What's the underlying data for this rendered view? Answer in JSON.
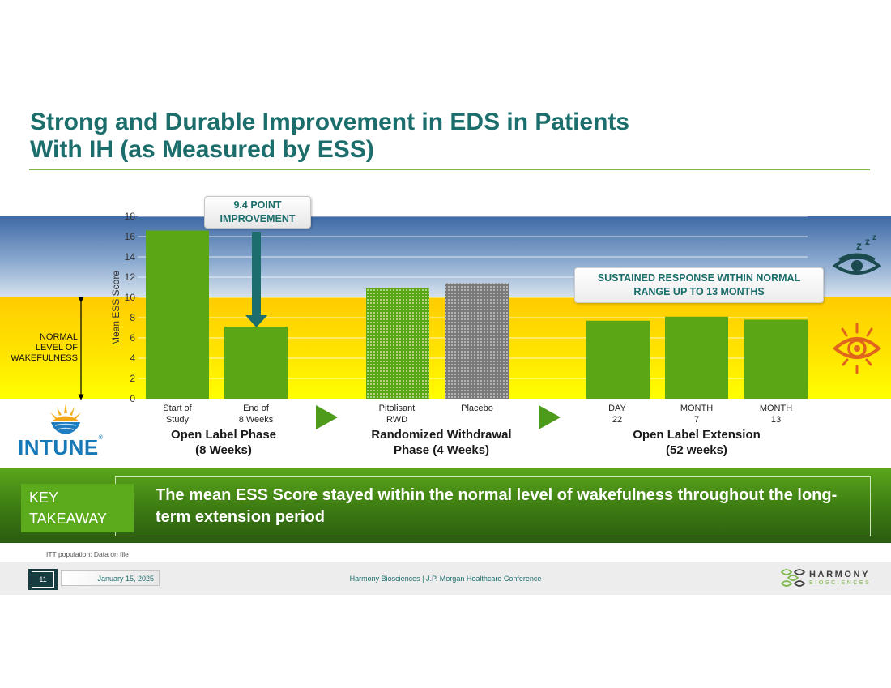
{
  "title": {
    "line1": "Strong and Durable Improvement in EDS in Patients",
    "line2": "With IH (as Measured by ESS)"
  },
  "chart_data": {
    "type": "bar",
    "ylabel": "Mean ESS Score",
    "ylim": [
      0,
      18
    ],
    "yticks": [
      "0",
      "2",
      "4",
      "6",
      "8",
      "10",
      "12",
      "14",
      "16",
      "18"
    ],
    "normal_range_max": 10,
    "categories": [
      "Start of Study",
      "End of 8 Weeks",
      "Pitolisant RWD",
      "Placebo",
      "DAY 22",
      "MONTH 7",
      "MONTH 13"
    ],
    "values": [
      16.6,
      7.1,
      10.9,
      11.4,
      7.7,
      8.1,
      7.8
    ],
    "bar_styles": [
      "solid",
      "solid",
      "dotted-green",
      "dotted-gray",
      "solid",
      "solid",
      "solid"
    ],
    "groups": [
      {
        "label": "Open Label Phase (8 Weeks)",
        "categories": [
          "Start of Study",
          "End of 8 Weeks"
        ]
      },
      {
        "label": "Randomized Withdrawal Phase (4 Weeks)",
        "categories": [
          "Pitolisant RWD",
          "Placebo"
        ]
      },
      {
        "label": "Open Label Extension (52 weeks)",
        "categories": [
          "DAY 22",
          "MONTH 7",
          "MONTH 13"
        ]
      }
    ],
    "annotations": [
      "9.4 POINT IMPROVEMENT",
      "SUSTAINED RESPONSE WITHIN NORMAL RANGE UP TO 13 MONTHS"
    ]
  },
  "callouts": {
    "improvement": {
      "line1": "9.4 POINT",
      "line2": "IMPROVEMENT"
    },
    "sustained": {
      "line1": "SUSTAINED RESPONSE WITHIN NORMAL",
      "line2": "RANGE UP TO 13 MONTHS"
    }
  },
  "normal_label": {
    "line1": "NORMAL",
    "line2": "LEVEL OF",
    "line3": "WAKEFULNESS"
  },
  "categories": [
    {
      "line1": "Start of",
      "line2": "Study"
    },
    {
      "line1": "End of",
      "line2": "8 Weeks"
    },
    {
      "line1": "Pitolisant",
      "line2": "RWD"
    },
    {
      "line1": "Placebo",
      "line2": ""
    },
    {
      "line1": "DAY",
      "line2": "22"
    },
    {
      "line1": "MONTH",
      "line2": "7"
    },
    {
      "line1": "MONTH",
      "line2": "13"
    }
  ],
  "phases": [
    {
      "line1": "Open Label Phase",
      "line2": "(8 Weeks)"
    },
    {
      "line1": "Randomized Withdrawal",
      "line2": "Phase (4 Weeks)"
    },
    {
      "line1": "Open Label Extension",
      "line2": "(52 weeks)"
    }
  ],
  "brand": {
    "intune": "INTUNE",
    "registered": "®",
    "company": "HARMONY",
    "company_sub": "BIOSCIENCES"
  },
  "key_takeaway": {
    "label_line1": "KEY",
    "label_line2": "TAKEAWAY",
    "text": "The mean ESS Score stayed within the normal level of wakefulness throughout the long-term extension period"
  },
  "footnote": "ITT population: Data on file",
  "footer": {
    "page": "11",
    "date": "January 15, 2025",
    "center": "Harmony Biosciences  |  J.P. Morgan Healthcare Conference"
  },
  "icons": [
    "sleeping-eye-icon",
    "awake-eye-icon",
    "intune-logo-icon",
    "harmony-logo-icon",
    "play-arrow-icon"
  ],
  "colors": {
    "title": "#1b6e6b",
    "bar": "#5ba614",
    "bar_arrow": "#1b6e6b",
    "placebo": "#7a7a7a",
    "arrow": "#4e9a1a",
    "sky": "#3f6aa6",
    "sun": "#ffcc00",
    "orange_eye": "#e0641e"
  }
}
